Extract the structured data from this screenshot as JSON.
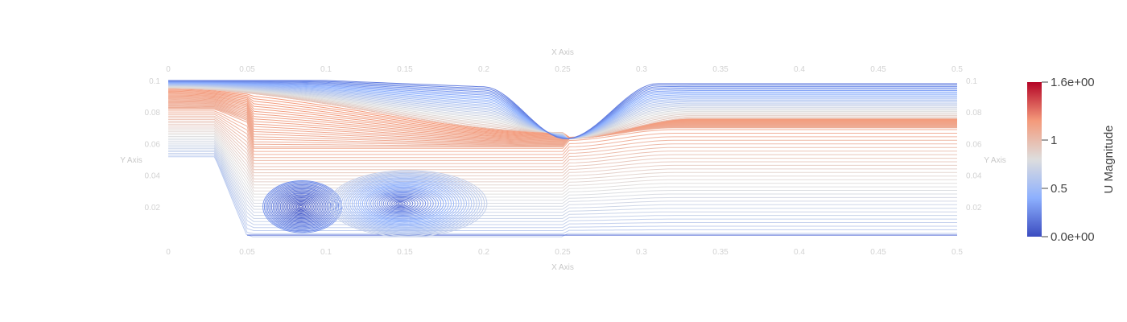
{
  "chart_data": {
    "type": "streamline",
    "x_axis": {
      "title": "X Axis",
      "range": [
        0,
        0.5
      ],
      "tick_labels": [
        "0",
        "0.05",
        "0.1",
        "0.15",
        "0.2",
        "0.25",
        "0.3",
        "0.35",
        "0.4",
        "0.45",
        "0.5"
      ]
    },
    "y_axis": {
      "title": "Y Axis",
      "range": [
        0,
        0.1
      ],
      "tick_values": [
        0.02,
        0.04,
        0.06,
        0.08,
        0.1
      ],
      "tick_labels": [
        "0.02",
        "0.04",
        "0.06",
        "0.08",
        "0.1"
      ]
    },
    "colorbar": {
      "title": "U Magnitude",
      "range": [
        0,
        1.6
      ],
      "tick_values": [
        0,
        0.5,
        1,
        1.6
      ],
      "tick_labels": [
        "0.0e+00",
        "0.5",
        "1",
        "1.6e+00"
      ],
      "colormap": [
        "#3b4cc0",
        "#8db0fe",
        "#dddddd",
        "#f49a7b",
        "#b40426"
      ]
    },
    "geometry": {
      "step": {
        "x_end": 0.03,
        "y": 0.05
      },
      "constriction": {
        "x": 0.252,
        "y_min": 0.063
      },
      "upper_wall_y": 0.1,
      "outlet_core_y": 0.07
    },
    "vortices": [
      {
        "center_x": 0.085,
        "center_y": 0.02,
        "speed": 0.0
      },
      {
        "center_x": 0.152,
        "center_y": 0.022,
        "speed": 0.1
      }
    ]
  }
}
